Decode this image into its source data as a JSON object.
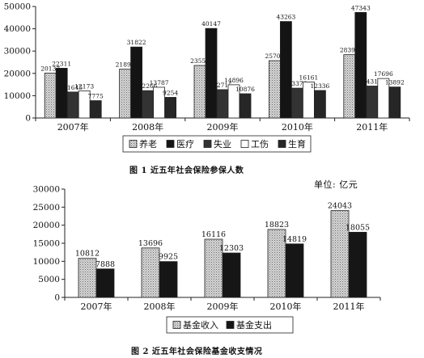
{
  "charts": [
    {
      "caption": "图 1  近五年社会保险参保人数",
      "unit": ""
    },
    {
      "caption": "图 2  近五年社会保险基金收支情况",
      "unit": "单位: 亿元"
    }
  ],
  "chart_data": [
    {
      "type": "bar",
      "title": "图 1  近五年社会保险参保人数",
      "categories": [
        "2007年",
        "2008年",
        "2009年",
        "2010年",
        "2011年"
      ],
      "ylim": [
        0,
        50000
      ],
      "yticks": [
        0,
        10000,
        20000,
        30000,
        40000,
        50000
      ],
      "grid": false,
      "legend": "bottom",
      "series": [
        {
          "name": "养老",
          "fill": "#d0d0d0",
          "pattern": "dots",
          "values": [
            20137,
            21891,
            23550,
            25707,
            28391
          ]
        },
        {
          "name": "医疗",
          "fill": "#141414",
          "pattern": "none",
          "values": [
            22311,
            31822,
            40147,
            43263,
            47343
          ]
        },
        {
          "name": "失业",
          "fill": "#333333",
          "pattern": "none",
          "values": [
            11645,
            12266,
            12715,
            13376,
            14317
          ]
        },
        {
          "name": "工伤",
          "fill": "#ffffff",
          "pattern": "none",
          "values": [
            12173,
            13787,
            14896,
            16161,
            17696
          ]
        },
        {
          "name": "生育",
          "fill": "#262626",
          "pattern": "none",
          "values": [
            7775,
            9254,
            10876,
            12336,
            13892
          ]
        }
      ]
    },
    {
      "type": "bar",
      "title": "图 2  近五年社会保险基金收支情况",
      "categories": [
        "2007年",
        "2008年",
        "2009年",
        "2010年",
        "2011年"
      ],
      "ylim": [
        0,
        30000
      ],
      "yticks": [
        0,
        5000,
        10000,
        15000,
        20000,
        25000,
        30000
      ],
      "grid": false,
      "legend": "bottom",
      "series": [
        {
          "name": "基金收入",
          "fill": "#c8c8c8",
          "pattern": "dots",
          "values": [
            10812,
            13696,
            16116,
            18823,
            24043
          ]
        },
        {
          "name": "基金支出",
          "fill": "#161616",
          "pattern": "none",
          "values": [
            7888,
            9925,
            12303,
            14819,
            18055
          ]
        }
      ]
    }
  ]
}
